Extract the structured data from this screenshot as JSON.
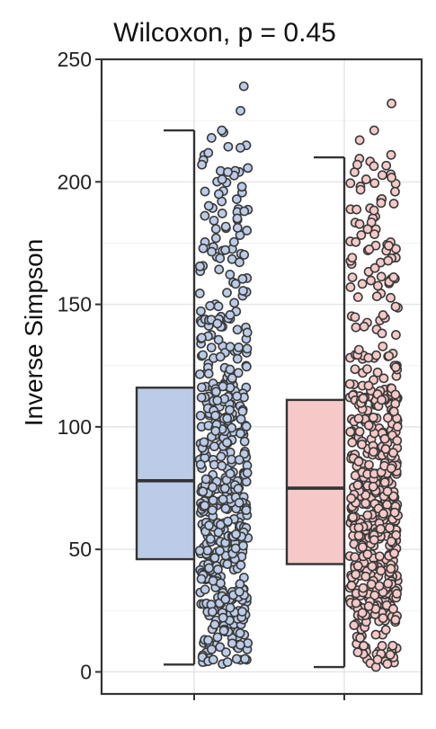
{
  "chart_data": {
    "type": "box",
    "title": "Wilcoxon, p = 0.45",
    "xlabel": "",
    "ylabel": "Inverse Simpson",
    "ylim": [
      -9,
      250
    ],
    "yticks": [
      0,
      50,
      100,
      150,
      200,
      250
    ],
    "grid": true,
    "legend": "none",
    "series": [
      {
        "fill": "#bccce8",
        "point_fill": "#bccce8",
        "stats": {
          "whisker_low": 3,
          "q1": 46,
          "median": 78,
          "q3": 116,
          "whisker_high": 221
        },
        "points_approx": 520,
        "notable_points": [
          4,
          5,
          8,
          195,
          198,
          201,
          204,
          207,
          221,
          229,
          239
        ]
      },
      {
        "fill": "#f6c9c9",
        "point_fill": "#f6c9c9",
        "stats": {
          "whisker_low": 2,
          "q1": 44,
          "median": 75,
          "q3": 111,
          "whisker_high": 210
        },
        "points_approx": 520,
        "notable_points": [
          2,
          5,
          7,
          196,
          201,
          207,
          211,
          217,
          221,
          232
        ]
      }
    ]
  }
}
